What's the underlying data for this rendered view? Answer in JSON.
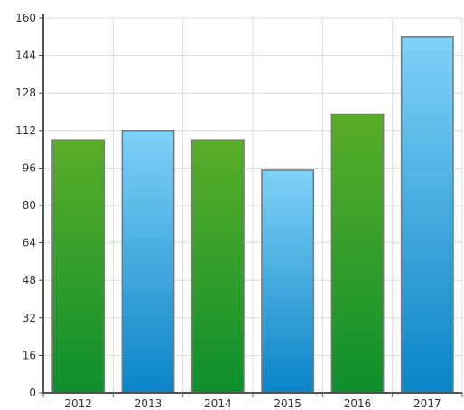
{
  "chart_data": {
    "type": "bar",
    "title": "",
    "xlabel": "",
    "ylabel": "",
    "categories": [
      "2012",
      "2013",
      "2014",
      "2015",
      "2016",
      "2017"
    ],
    "values": [
      108,
      112,
      108,
      95,
      119,
      152
    ],
    "bar_styles": [
      "green",
      "blue",
      "green",
      "blue",
      "green",
      "blue"
    ],
    "ylim": [
      0,
      160
    ],
    "yticks": [
      0,
      16,
      32,
      48,
      64,
      80,
      96,
      112,
      128,
      144,
      160
    ],
    "grid": true,
    "legend": "none",
    "colors": {
      "green_top": "#5aad27",
      "green_bottom": "#0d8f2d",
      "blue_top": "#7fd1f7",
      "blue_bottom": "#0a84c6",
      "grid": "#dcdcdc",
      "axis": "#555555",
      "bar_border": "#7b7b7b"
    }
  }
}
